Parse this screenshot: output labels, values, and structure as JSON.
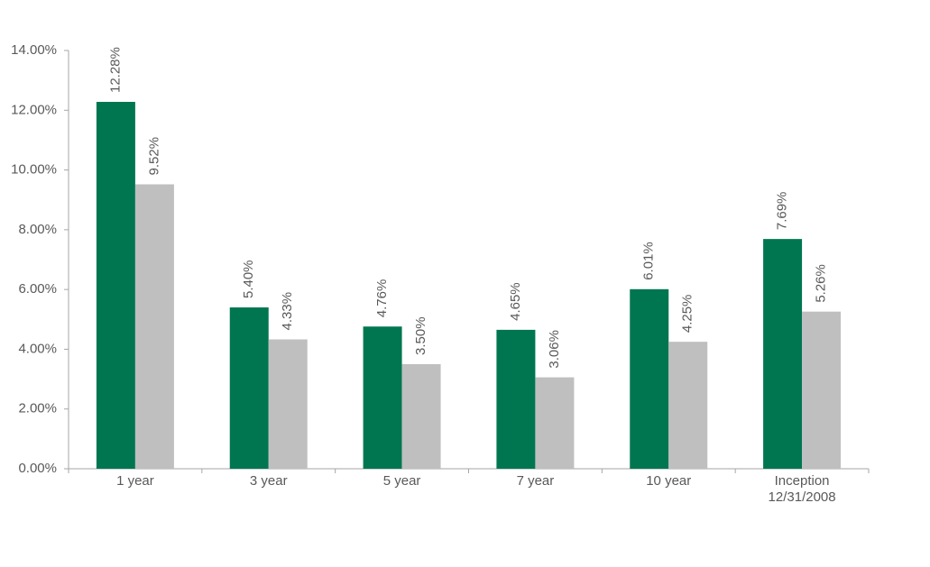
{
  "chart_data": {
    "type": "bar",
    "categories": [
      "1 year",
      "3 year",
      "5 year",
      "7 year",
      "10 year",
      "Inception\n12/31/2008"
    ],
    "series": [
      {
        "color": "#007650",
        "values": [
          12.28,
          5.4,
          4.76,
          4.65,
          6.01,
          7.69
        ],
        "value_labels": [
          "12.28%",
          "5.40%",
          "4.76%",
          "4.65%",
          "6.01%",
          "7.69%"
        ]
      },
      {
        "color": "#bfbfbf",
        "values": [
          9.52,
          4.33,
          3.5,
          3.06,
          4.25,
          5.26
        ],
        "value_labels": [
          "9.52%",
          "4.33%",
          "3.50%",
          "3.06%",
          "4.25%",
          "5.26%"
        ]
      }
    ],
    "ylim": [
      0,
      14
    ],
    "yticks": [
      {
        "value": 0,
        "label": "0.00%"
      },
      {
        "value": 2,
        "label": "2.00%"
      },
      {
        "value": 4,
        "label": "4.00%"
      },
      {
        "value": 6,
        "label": "6.00%"
      },
      {
        "value": 8,
        "label": "8.00%"
      },
      {
        "value": 10,
        "label": "10.00%"
      },
      {
        "value": 12,
        "label": "12.00%"
      },
      {
        "value": 14,
        "label": "14.00%"
      }
    ],
    "grid": false
  }
}
